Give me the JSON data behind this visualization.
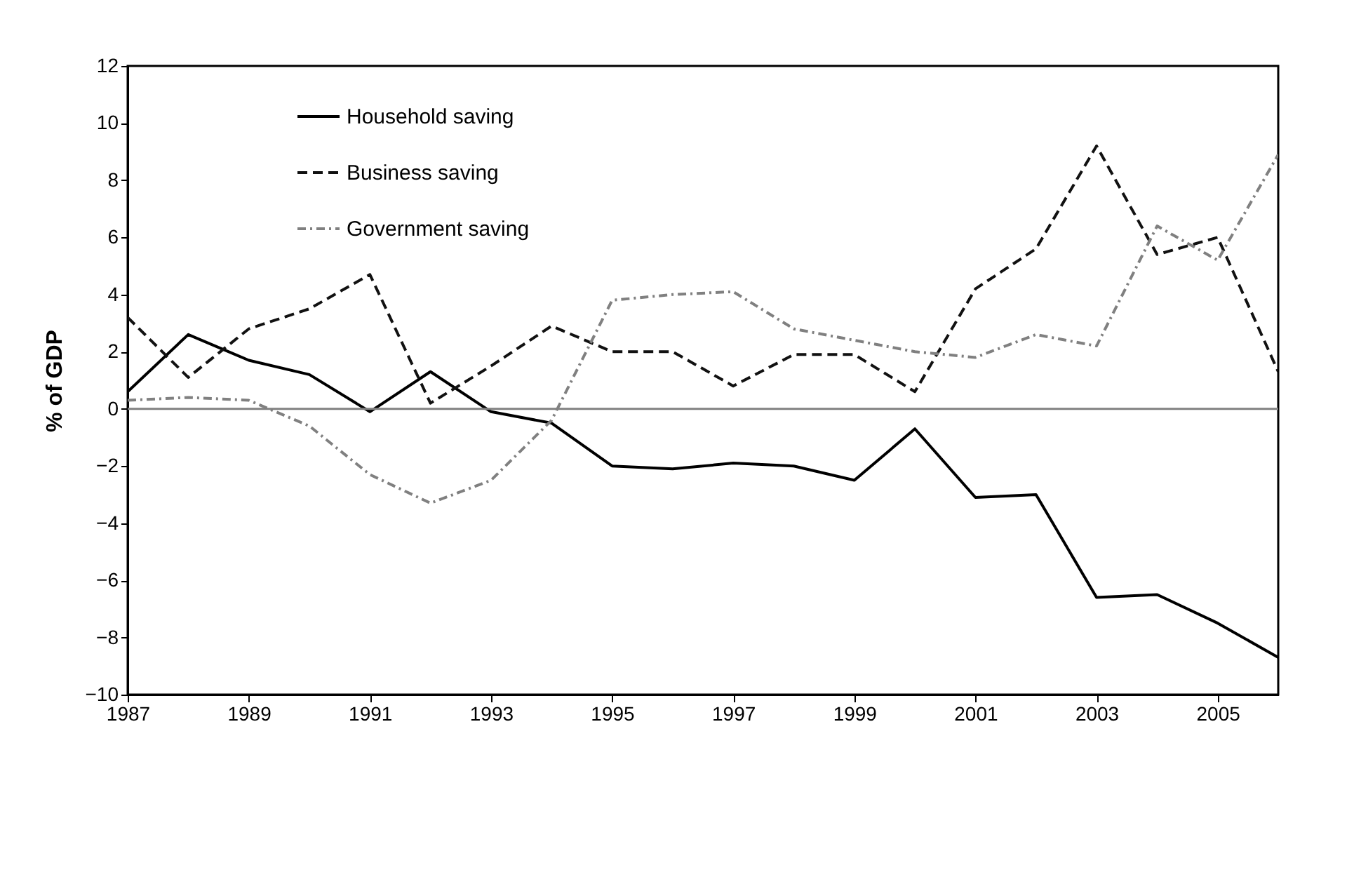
{
  "chart_data": {
    "type": "line",
    "ylabel": "% of GDP",
    "x": [
      1987,
      1988,
      1989,
      1990,
      1991,
      1992,
      1993,
      1994,
      1995,
      1996,
      1997,
      1998,
      1999,
      2000,
      2001,
      2002,
      2003,
      2004,
      2005,
      2006
    ],
    "series": [
      {
        "name": "Household saving",
        "color": "#000000",
        "line_style": "solid",
        "values": [
          0.6,
          2.6,
          1.7,
          1.2,
          -0.1,
          1.3,
          -0.1,
          -0.5,
          -2.0,
          -2.1,
          -1.9,
          -2.0,
          -2.5,
          -0.7,
          -3.1,
          -3.0,
          -6.6,
          -6.5,
          -7.5,
          -8.7
        ]
      },
      {
        "name": "Business saving",
        "color": "#111111",
        "line_style": "dashed",
        "values": [
          3.2,
          1.1,
          2.8,
          3.5,
          4.7,
          0.2,
          1.5,
          2.9,
          2.0,
          2.0,
          0.8,
          1.9,
          1.9,
          0.6,
          4.2,
          5.6,
          9.2,
          5.4,
          6.0,
          1.3
        ]
      },
      {
        "name": "Government saving",
        "color": "#808080",
        "line_style": "dotted",
        "values": [
          0.3,
          0.4,
          0.3,
          -0.6,
          -2.3,
          -3.3,
          -2.5,
          -0.4,
          3.8,
          4.0,
          4.1,
          2.8,
          2.4,
          2.0,
          1.8,
          2.6,
          2.2,
          6.4,
          5.2,
          8.9
        ]
      }
    ],
    "xlim": [
      1987,
      2006
    ],
    "xticks": [
      1987,
      1989,
      1991,
      1993,
      1995,
      1997,
      1999,
      2001,
      2003,
      2005
    ],
    "ylim": [
      -10,
      12
    ],
    "yticks": [
      -10,
      -8,
      -6,
      -4,
      -2,
      0,
      2,
      4,
      6,
      8,
      10,
      12
    ],
    "ref_lines": [
      {
        "axis": "y",
        "value": 0,
        "color": "#808080"
      }
    ],
    "grid": false,
    "legend": "top left",
    "marker": "none"
  }
}
